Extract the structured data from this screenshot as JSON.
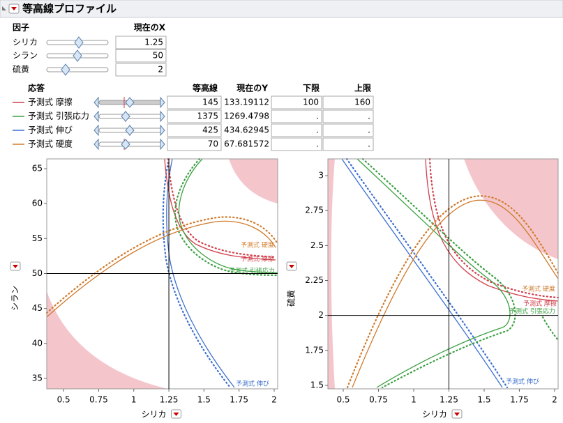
{
  "title": "等高線プロファイル",
  "factors": {
    "header": [
      "因子",
      "現在のX"
    ],
    "rows": [
      {
        "name": "シリカ",
        "value": 1.25
      },
      {
        "name": "シラン",
        "value": 50
      },
      {
        "name": "硫黄",
        "value": 2
      }
    ]
  },
  "responses": {
    "header": [
      "応答",
      "等高線",
      "現在のY",
      "下限",
      "上限"
    ],
    "rows": [
      {
        "name": "予測式 摩擦",
        "color": "#d0404c",
        "contour": 145,
        "current": 133.19112,
        "low": 100,
        "high": 160
      },
      {
        "name": "予測式 引張応力",
        "color": "#3aa040",
        "contour": 1375,
        "current": 1269.4798,
        "low": ".",
        "high": "."
      },
      {
        "name": "予測式 伸び",
        "color": "#3c6fd0",
        "contour": 425,
        "current": 434.62945,
        "low": ".",
        "high": "."
      },
      {
        "name": "予測式 硬度",
        "color": "#d07a2a",
        "contour": 70,
        "current": 67.681572,
        "low": ".",
        "high": "."
      }
    ]
  },
  "plots": [
    {
      "xlabel": "シリカ",
      "ylabel": "シラン",
      "xlim": [
        0.38,
        2.025
      ],
      "ylim": [
        33.5,
        66.4
      ],
      "xticks": [
        0.5,
        0.75,
        1,
        1.25,
        1.5,
        1.75,
        2
      ],
      "yticks": [
        35,
        40,
        45,
        50,
        55,
        60,
        65
      ]
    },
    {
      "xlabel": "シリカ",
      "ylabel": "硫黄",
      "xlim": [
        0.391,
        2.025
      ],
      "ylim": [
        1.475,
        3.12
      ],
      "xticks": [
        0.5,
        0.75,
        1,
        1.25,
        1.5,
        1.75,
        2
      ],
      "yticks": [
        1.5,
        1.75,
        2,
        2.25,
        2.5,
        2.75,
        3
      ]
    }
  ]
}
